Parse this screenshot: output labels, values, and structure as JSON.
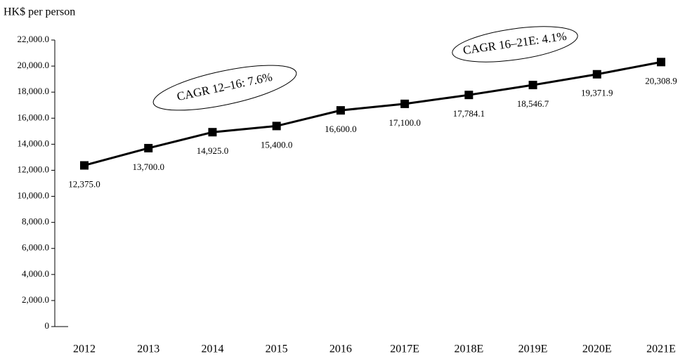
{
  "chart_data": {
    "type": "line",
    "y_label": "HK$ per person",
    "categories": [
      "2012",
      "2013",
      "2014",
      "2015",
      "2016",
      "2017E",
      "2018E",
      "2019E",
      "2020E",
      "2021E"
    ],
    "series": [
      {
        "name": "HK$ per person",
        "color": "#000000",
        "values": [
          12375.0,
          13700.0,
          14925.0,
          15400.0,
          16600.0,
          17100.0,
          17784.1,
          18546.7,
          19371.9,
          20308.9
        ],
        "value_labels": [
          "12,375.0",
          "13,700.0",
          "14,925.0",
          "15,400.0",
          "16,600.0",
          "17,100.0",
          "17,784.1",
          "18,546.7",
          "19,371.9",
          "20,308.9"
        ]
      }
    ],
    "ylim": [
      0,
      22000
    ],
    "yticks": [
      0,
      {
        "value": 2000,
        "label": "2,000.0"
      },
      {
        "value": 4000,
        "label": "4,000.0"
      },
      {
        "value": 6000,
        "label": "6,000.0"
      },
      {
        "value": 8000,
        "label": "8,000.0"
      },
      {
        "value": 10000,
        "label": "10,000.0"
      },
      {
        "value": 12000,
        "label": "12,000.0"
      },
      {
        "value": 14000,
        "label": "14,000.0"
      },
      {
        "value": 16000,
        "label": "16,000.0"
      },
      {
        "value": 18000,
        "label": "18,000.0"
      },
      {
        "value": 20000,
        "label": "20,000.0"
      },
      {
        "value": 22000,
        "label": "22,000.0"
      }
    ],
    "annotations": [
      "CAGR 12–16: 7.6%",
      "CAGR 16–21E: 4.1%"
    ],
    "grid": false
  }
}
